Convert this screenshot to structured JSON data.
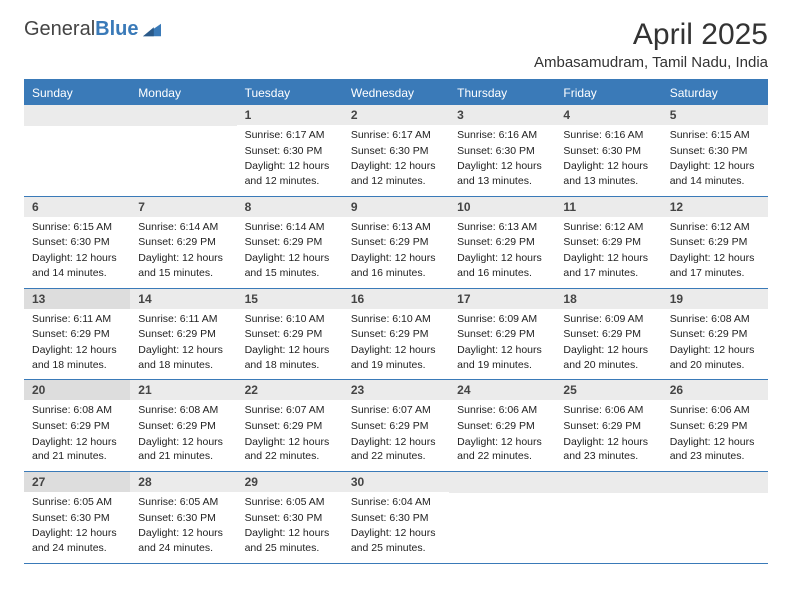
{
  "logo": {
    "text1": "General",
    "text2": "Blue"
  },
  "title": "April 2025",
  "location": "Ambasamudram, Tamil Nadu, India",
  "colors": {
    "accent": "#3a7ab8",
    "headerbg": "#3a7ab8",
    "daybg": "#ebebeb",
    "shaded": "#ddd",
    "text": "#222"
  },
  "dayNames": [
    "Sunday",
    "Monday",
    "Tuesday",
    "Wednesday",
    "Thursday",
    "Friday",
    "Saturday"
  ],
  "weeks": [
    [
      {
        "empty": true
      },
      {
        "empty": true
      },
      {
        "n": "1",
        "sr": "6:17 AM",
        "ss": "6:30 PM",
        "dl": "12 hours and 12 minutes."
      },
      {
        "n": "2",
        "sr": "6:17 AM",
        "ss": "6:30 PM",
        "dl": "12 hours and 12 minutes."
      },
      {
        "n": "3",
        "sr": "6:16 AM",
        "ss": "6:30 PM",
        "dl": "12 hours and 13 minutes."
      },
      {
        "n": "4",
        "sr": "6:16 AM",
        "ss": "6:30 PM",
        "dl": "12 hours and 13 minutes."
      },
      {
        "n": "5",
        "sr": "6:15 AM",
        "ss": "6:30 PM",
        "dl": "12 hours and 14 minutes."
      }
    ],
    [
      {
        "n": "6",
        "sr": "6:15 AM",
        "ss": "6:30 PM",
        "dl": "12 hours and 14 minutes."
      },
      {
        "n": "7",
        "sr": "6:14 AM",
        "ss": "6:29 PM",
        "dl": "12 hours and 15 minutes."
      },
      {
        "n": "8",
        "sr": "6:14 AM",
        "ss": "6:29 PM",
        "dl": "12 hours and 15 minutes."
      },
      {
        "n": "9",
        "sr": "6:13 AM",
        "ss": "6:29 PM",
        "dl": "12 hours and 16 minutes."
      },
      {
        "n": "10",
        "sr": "6:13 AM",
        "ss": "6:29 PM",
        "dl": "12 hours and 16 minutes."
      },
      {
        "n": "11",
        "sr": "6:12 AM",
        "ss": "6:29 PM",
        "dl": "12 hours and 17 minutes."
      },
      {
        "n": "12",
        "sr": "6:12 AM",
        "ss": "6:29 PM",
        "dl": "12 hours and 17 minutes."
      }
    ],
    [
      {
        "n": "13",
        "sr": "6:11 AM",
        "ss": "6:29 PM",
        "dl": "12 hours and 18 minutes.",
        "shaded": true
      },
      {
        "n": "14",
        "sr": "6:11 AM",
        "ss": "6:29 PM",
        "dl": "12 hours and 18 minutes."
      },
      {
        "n": "15",
        "sr": "6:10 AM",
        "ss": "6:29 PM",
        "dl": "12 hours and 18 minutes."
      },
      {
        "n": "16",
        "sr": "6:10 AM",
        "ss": "6:29 PM",
        "dl": "12 hours and 19 minutes."
      },
      {
        "n": "17",
        "sr": "6:09 AM",
        "ss": "6:29 PM",
        "dl": "12 hours and 19 minutes."
      },
      {
        "n": "18",
        "sr": "6:09 AM",
        "ss": "6:29 PM",
        "dl": "12 hours and 20 minutes."
      },
      {
        "n": "19",
        "sr": "6:08 AM",
        "ss": "6:29 PM",
        "dl": "12 hours and 20 minutes."
      }
    ],
    [
      {
        "n": "20",
        "sr": "6:08 AM",
        "ss": "6:29 PM",
        "dl": "12 hours and 21 minutes.",
        "shaded": true
      },
      {
        "n": "21",
        "sr": "6:08 AM",
        "ss": "6:29 PM",
        "dl": "12 hours and 21 minutes."
      },
      {
        "n": "22",
        "sr": "6:07 AM",
        "ss": "6:29 PM",
        "dl": "12 hours and 22 minutes."
      },
      {
        "n": "23",
        "sr": "6:07 AM",
        "ss": "6:29 PM",
        "dl": "12 hours and 22 minutes."
      },
      {
        "n": "24",
        "sr": "6:06 AM",
        "ss": "6:29 PM",
        "dl": "12 hours and 22 minutes."
      },
      {
        "n": "25",
        "sr": "6:06 AM",
        "ss": "6:29 PM",
        "dl": "12 hours and 23 minutes."
      },
      {
        "n": "26",
        "sr": "6:06 AM",
        "ss": "6:29 PM",
        "dl": "12 hours and 23 minutes."
      }
    ],
    [
      {
        "n": "27",
        "sr": "6:05 AM",
        "ss": "6:30 PM",
        "dl": "12 hours and 24 minutes.",
        "shaded": true
      },
      {
        "n": "28",
        "sr": "6:05 AM",
        "ss": "6:30 PM",
        "dl": "12 hours and 24 minutes."
      },
      {
        "n": "29",
        "sr": "6:05 AM",
        "ss": "6:30 PM",
        "dl": "12 hours and 25 minutes."
      },
      {
        "n": "30",
        "sr": "6:04 AM",
        "ss": "6:30 PM",
        "dl": "12 hours and 25 minutes."
      },
      {
        "empty": true
      },
      {
        "empty": true
      },
      {
        "empty": true
      }
    ]
  ],
  "labels": {
    "sunrise": "Sunrise:",
    "sunset": "Sunset:",
    "daylight": "Daylight:"
  }
}
